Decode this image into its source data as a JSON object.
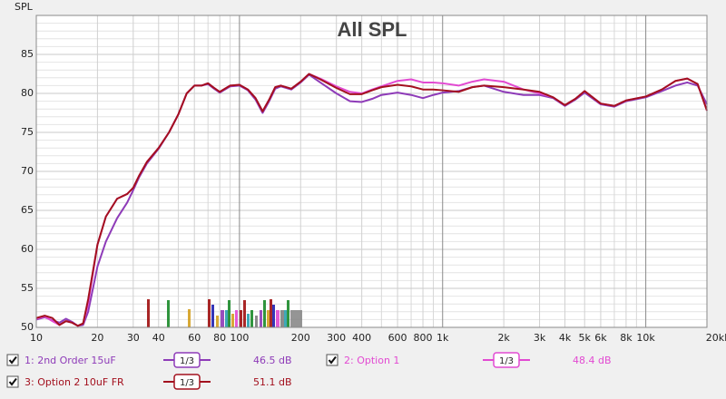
{
  "chart_data": {
    "type": "line",
    "title": "All SPL",
    "ylabel": "SPL",
    "xscale": "log",
    "grid": true,
    "xlim": [
      10,
      20000
    ],
    "ylim": [
      50,
      90
    ],
    "yticks": [
      50,
      55,
      60,
      65,
      70,
      75,
      80,
      85
    ],
    "y_minor_ticks": [
      51,
      52,
      53,
      54,
      56,
      57,
      58,
      59,
      61,
      62,
      63,
      64,
      66,
      67,
      68,
      69,
      71,
      72,
      73,
      74,
      76,
      77,
      78,
      79,
      81,
      82,
      83,
      84,
      86,
      87,
      88,
      89
    ],
    "xticks": [
      10,
      20,
      30,
      40,
      60,
      80,
      100,
      200,
      300,
      400,
      600,
      800,
      {
        "value": 1000,
        "label": "1k"
      },
      {
        "value": 2000,
        "label": "2k"
      },
      {
        "value": 3000,
        "label": "3k"
      },
      {
        "value": 4000,
        "label": "4k"
      },
      {
        "value": 5000,
        "label": "5k"
      },
      {
        "value": 6000,
        "label": "6k"
      },
      {
        "value": 8000,
        "label": "8k"
      },
      {
        "value": 10000,
        "label": "10k"
      },
      {
        "value": 20000,
        "label": "20kHz"
      }
    ],
    "x_minor_ticks": [
      50,
      70,
      90,
      500,
      700,
      900,
      7000,
      9000
    ],
    "x": [
      10,
      11,
      12,
      13,
      14,
      15,
      16,
      17,
      18,
      20,
      22,
      25,
      28,
      30,
      32,
      35,
      40,
      45,
      50,
      55,
      60,
      65,
      70,
      75,
      80,
      90,
      100,
      110,
      120,
      130,
      140,
      150,
      160,
      180,
      200,
      220,
      250,
      300,
      350,
      400,
      450,
      500,
      600,
      700,
      800,
      900,
      1000,
      1200,
      1400,
      1600,
      2000,
      2500,
      3000,
      3500,
      4000,
      4500,
      5000,
      6000,
      7000,
      8000,
      10000,
      12000,
      14000,
      16000,
      18000,
      20000
    ],
    "series": [
      {
        "name": "1: 2nd Order 15uF",
        "color": "#8e3bb8",
        "smoothing": "1/3",
        "level": "46.5 dB",
        "values": [
          51,
          51.3,
          50.9,
          50.6,
          51.1,
          50.7,
          50.2,
          50.3,
          52,
          57.8,
          61,
          64,
          66,
          67.6,
          69.2,
          71,
          72.9,
          75,
          77.3,
          80,
          81,
          81,
          81.2,
          80.6,
          80.1,
          80.9,
          81,
          80.4,
          79.2,
          77.5,
          79,
          80.6,
          80.9,
          80.5,
          81.4,
          82.4,
          81.4,
          80,
          79,
          78.9,
          79.3,
          79.8,
          80.1,
          79.8,
          79.4,
          79.8,
          80.1,
          80.3,
          80.8,
          81,
          80.2,
          79.8,
          79.8,
          79.4,
          78.4,
          79.2,
          80.1,
          78.6,
          78.3,
          79,
          79.5,
          80.3,
          81,
          81.4,
          81,
          78.6
        ]
      },
      {
        "name": "2: Option 1",
        "color": "#e24ad2",
        "smoothing": "1/3",
        "level": "48.4 dB",
        "values": [
          51.1,
          51.4,
          50.8,
          50.3,
          50.8,
          50.6,
          50.2,
          50.5,
          53,
          60.6,
          64.2,
          66.5,
          67.1,
          67.9,
          69.4,
          71.2,
          73,
          75,
          77.3,
          80,
          81,
          81,
          81.3,
          80.7,
          80.2,
          81,
          81.1,
          80.5,
          79.4,
          77.7,
          79.2,
          80.8,
          81,
          80.6,
          81.5,
          82.5,
          81.9,
          80.9,
          80.2,
          80,
          80.5,
          80.9,
          81.6,
          81.8,
          81.4,
          81.4,
          81.3,
          81,
          81.5,
          81.8,
          81.5,
          80.5,
          80,
          79.5,
          78.5,
          79.3,
          80.3,
          78.7,
          78.4,
          79.1,
          79.6,
          80.5,
          81.6,
          81.9,
          81.2,
          77.8
        ]
      },
      {
        "name": "3: Option 2 10uF FR",
        "color": "#a3101e",
        "smoothing": "1/3",
        "level": "51.1 dB",
        "values": [
          51.2,
          51.5,
          51.2,
          50.3,
          50.8,
          50.6,
          50.2,
          50.5,
          53.6,
          60.6,
          64.2,
          66.5,
          67.1,
          67.9,
          69.4,
          71.2,
          73,
          75,
          77.3,
          80,
          81,
          81,
          81.3,
          80.7,
          80.2,
          81,
          81.1,
          80.5,
          79.4,
          77.7,
          79.2,
          80.8,
          81,
          80.6,
          81.5,
          82.5,
          81.8,
          80.7,
          79.9,
          79.9,
          80.4,
          80.8,
          81.1,
          80.9,
          80.5,
          80.5,
          80.4,
          80.2,
          80.8,
          81,
          80.8,
          80.5,
          80.2,
          79.5,
          78.5,
          79.3,
          80.3,
          78.7,
          78.4,
          79.1,
          79.6,
          80.5,
          81.6,
          81.9,
          81.2,
          77.8
        ]
      }
    ]
  }
}
